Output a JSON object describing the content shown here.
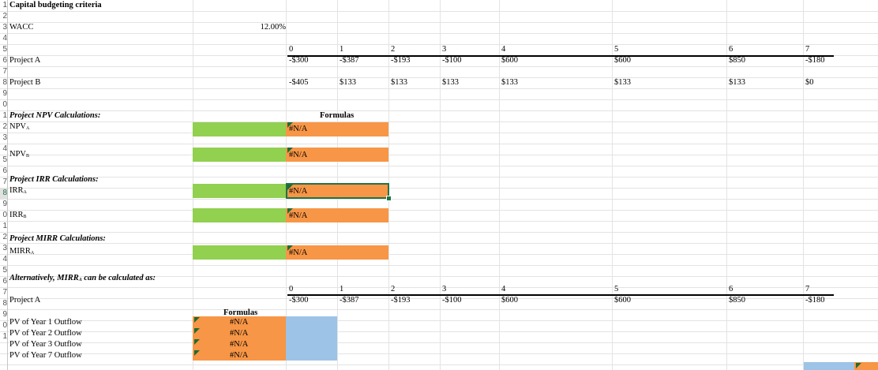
{
  "title": "Capital budgeting criteria",
  "wacc": {
    "label": "WACC",
    "value": "12.00%"
  },
  "row_numbers": [
    "1",
    "2",
    "3",
    "4",
    "5",
    "6",
    "7",
    "8",
    "9",
    "0",
    "1",
    "2",
    "3",
    "4",
    "5",
    "6",
    "7",
    "8",
    "9",
    "0",
    "1",
    "2",
    "3",
    "4",
    "5",
    "6",
    "7",
    "8",
    "9",
    "0",
    "1"
  ],
  "periods": [
    "0",
    "1",
    "2",
    "3",
    "4",
    "5",
    "6",
    "7"
  ],
  "project_a": {
    "label": "Project A",
    "cash_flows": [
      "-$300",
      "-$387",
      "-$193",
      "-$100",
      "$600",
      "$600",
      "$850",
      "-$180"
    ]
  },
  "project_b": {
    "label": "Project B",
    "cash_flows": [
      "-$405",
      "$133",
      "$133",
      "$133",
      "$133",
      "$133",
      "$133",
      "$0"
    ]
  },
  "npv_section": {
    "heading": "Project NPV Calculations:",
    "formulas_label": "Formulas",
    "npv_a": {
      "label": "NPV",
      "sub": "A",
      "value": "#N/A"
    },
    "npv_b": {
      "label": "NPV",
      "sub": "B",
      "value": "#N/A"
    }
  },
  "irr_section": {
    "heading": "Project IRR Calculations:",
    "irr_a": {
      "label": "IRR",
      "sub": "A",
      "value": "#N/A"
    },
    "irr_b": {
      "label": "IRR",
      "sub": "B",
      "value": "#N/A"
    }
  },
  "mirr_section": {
    "heading": "Project MIRR Calculations:",
    "mirr_a": {
      "label": "MIRR",
      "sub": "A",
      "value": "#N/A"
    }
  },
  "alt_section": {
    "heading_pre": "Alternatively, MIRR",
    "heading_sub": "A",
    "heading_post": " can be calculated as:",
    "periods": [
      "0",
      "1",
      "2",
      "3",
      "4",
      "5",
      "6",
      "7"
    ],
    "project_a": {
      "label": "Project A",
      "cash_flows": [
        "-$300",
        "-$387",
        "-$193",
        "-$100",
        "$600",
        "$600",
        "$850",
        "-$180"
      ]
    },
    "formulas_label": "Formulas",
    "pv_rows": [
      {
        "label": "PV of Year 1 Outflow",
        "value": "#N/A"
      },
      {
        "label": "PV of Year 2 Outflow",
        "value": "#N/A"
      },
      {
        "label": "PV of Year 3 Outflow",
        "value": "#N/A"
      },
      {
        "label": "PV of Year 7 Outflow",
        "value": "#N/A"
      }
    ]
  },
  "colors": {
    "green": "#92d050",
    "orange": "#f79646",
    "blue": "#9dc3e6",
    "select": "#217346"
  }
}
